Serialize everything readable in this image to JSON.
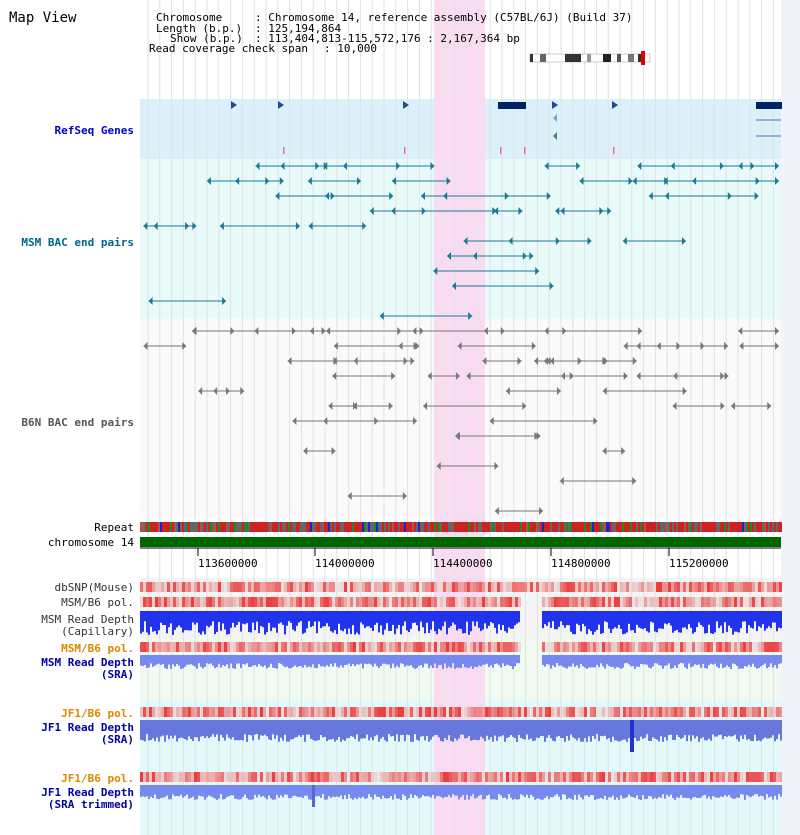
{
  "title": "Map View",
  "header": {
    "k_chrom": "Chromosome",
    "v_chrom": ": Chromosome 14, reference assembly (C57BL/6J) (Build 37)",
    "k_len": "Length (b.p.)",
    "v_len": ": 125,194,864",
    "k_show": "Show (b.p.)",
    "v_show": ": 113,404,813-115,572,176 : 2,167,364 bp",
    "k_span": "Read coverage check span",
    "v_span": ": 10,000"
  },
  "tracks": {
    "refseq": "RefSeq Genes",
    "msm_bac": "MSM BAC end pairs",
    "b6n_bac": "B6N BAC end pairs",
    "repeat": "Repeat",
    "chromosome": "chromosome 14",
    "dbsnp": "dbSNP(Mouse)",
    "msm_b6_pol_1": "MSM/B6 pol.",
    "msm_depth_cap_1": "MSM Read Depth",
    "msm_depth_cap_2": "(Capillary)",
    "msm_b6_pol_2": "MSM/B6 pol.",
    "msm_depth_sra_1": "MSM Read Depth",
    "msm_depth_sra_2": "(SRA)",
    "jf1_b6_pol_1": "JF1/B6 pol.",
    "jf1_depth_sra_1": "JF1 Read Depth",
    "jf1_depth_sra_2": "(SRA)",
    "jf1_b6_pol_2": "JF1/B6 pol.",
    "jf1_depth_trim_1": "JF1 Read Depth",
    "jf1_depth_trim_2": "(SRA trimmed)"
  },
  "axis": {
    "ticks": [
      "113600000",
      "114000000",
      "114400000",
      "114800000",
      "115200000"
    ]
  },
  "colors": {
    "refseq_label": "#0000cc",
    "msm_label": "#006688",
    "b6n_label": "#555555",
    "pol_label": "#dd8800",
    "depth_label": "#0000aa",
    "highlight": "#fadcf2",
    "chromosome": "#006600"
  }
}
